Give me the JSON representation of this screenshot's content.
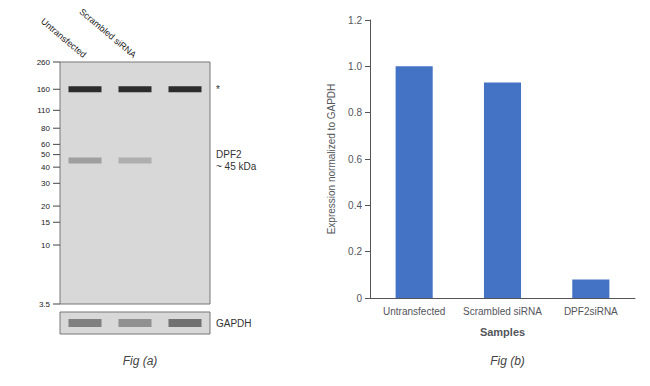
{
  "chart_data": [
    {
      "type": "blot",
      "title": "Fig (a)",
      "categories": [
        "Untransfected",
        "Scrambled siRNA",
        null
      ],
      "log": "y",
      "ylim": [
        3.5,
        260
      ],
      "yticks": [
        260,
        160,
        110,
        80,
        60,
        50,
        40,
        30,
        20,
        15,
        10,
        3.5
      ],
      "color": "#d8d8d8",
      "series": [
        {
          "name": "*",
          "values": [
            160,
            160,
            160
          ],
          "colors": [
            "#1a1a1a",
            "#1a1a1a",
            "#1a1a1a"
          ]
        },
        {
          "name": "DPF2",
          "annotation": "~ 45 kDa",
          "values": [
            45,
            45,
            null
          ],
          "colors": [
            "#999999",
            "#aaaaaa",
            null
          ]
        },
        {
          "name": "GAPDH",
          "type": "loading_control",
          "colors": [
            "#777777",
            "#888888",
            "#666666"
          ]
        }
      ]
    },
    {
      "type": "bar",
      "title": "Fig (b)",
      "categories": [
        "Untransfected",
        "Scrambled siRNA",
        "DPF2siRNA"
      ],
      "values": [
        1.0,
        0.93,
        0.08
      ],
      "color": "#4472C4",
      "xlabel": "Samples",
      "ylabel": "Expression normalized to GAPDH",
      "ylim": [
        0,
        1.2
      ],
      "yticks": [
        0,
        0.2,
        0.4,
        0.6,
        0.8,
        {
          "value": 1.0,
          "label": "1.0"
        },
        1.2
      ],
      "grid": false
    }
  ]
}
